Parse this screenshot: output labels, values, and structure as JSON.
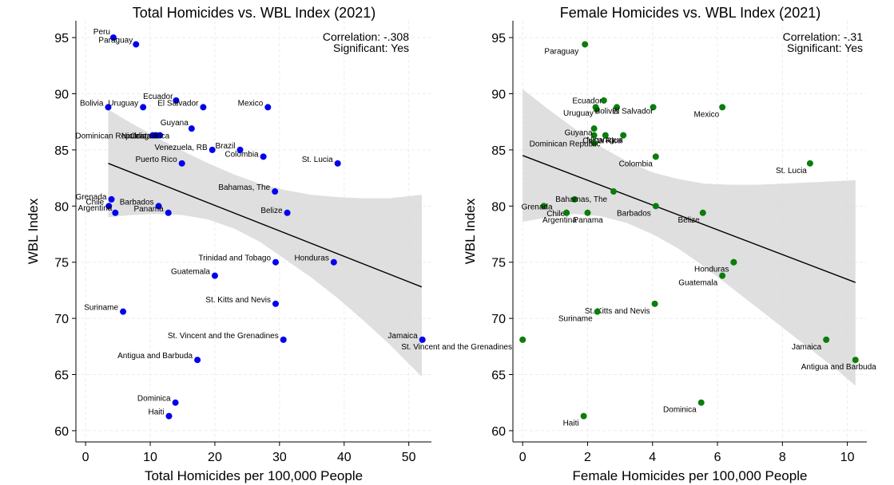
{
  "chart_data": [
    {
      "type": "scatter",
      "title": "Total Homicides vs. WBL Index (2021)",
      "xlabel": "Total Homicides per 100,000 People",
      "ylabel": "WBL Index",
      "xlim": [
        -1.5,
        53.5
      ],
      "ylim": [
        59,
        96.5
      ],
      "xticks": [
        0,
        10,
        20,
        30,
        40,
        50
      ],
      "yticks": [
        60,
        65,
        70,
        75,
        80,
        85,
        90,
        95
      ],
      "point_color": "#0000ee",
      "stats": {
        "correlation": "Correlation: -.308",
        "significant": "Significant: Yes"
      },
      "fit_line": {
        "x": [
          3.5,
          52
        ],
        "y": [
          83.8,
          72.8
        ]
      },
      "ci_band": {
        "x": [
          3.5,
          7,
          11,
          15,
          19,
          23,
          27,
          31,
          35,
          39,
          43,
          47,
          52
        ],
        "upper": [
          88.6,
          87.4,
          86.1,
          84.9,
          83.8,
          82.8,
          82.0,
          81.4,
          81.0,
          80.8,
          80.7,
          80.7,
          81.0
        ],
        "lower": [
          79.0,
          79.2,
          79.3,
          79.2,
          78.8,
          78.0,
          76.8,
          75.2,
          73.6,
          71.8,
          69.8,
          67.7,
          64.8
        ]
      },
      "points": [
        {
          "label": "Peru",
          "x": 4.3,
          "y": 95.0
        },
        {
          "label": "Paraguay",
          "x": 7.8,
          "y": 94.4
        },
        {
          "label": "Ecuador",
          "x": 14.0,
          "y": 89.4
        },
        {
          "label": "Bolivia",
          "x": 3.5,
          "y": 88.8
        },
        {
          "label": "Uruguay",
          "x": 8.9,
          "y": 88.8
        },
        {
          "label": "El Salvador",
          "x": 18.2,
          "y": 88.8
        },
        {
          "label": "Mexico",
          "x": 28.2,
          "y": 88.8
        },
        {
          "label": "Guyana",
          "x": 16.4,
          "y": 86.9
        },
        {
          "label": "Dominican Republic",
          "x": 10.4,
          "y": 86.3
        },
        {
          "label": "Nicaragua",
          "x": 10.9,
          "y": 86.3
        },
        {
          "label": "Costa Rica",
          "x": 11.5,
          "y": 86.3
        },
        {
          "label": "Venezuela, RB",
          "x": 19.6,
          "y": 85.0
        },
        {
          "label": "Brazil",
          "x": 23.9,
          "y": 85.0
        },
        {
          "label": "Colombia",
          "x": 27.5,
          "y": 84.4
        },
        {
          "label": "Puerto Rico",
          "x": 14.9,
          "y": 83.8
        },
        {
          "label": "St. Lucia",
          "x": 39.0,
          "y": 83.8
        },
        {
          "label": "Bahamas, The",
          "x": 29.3,
          "y": 81.3
        },
        {
          "label": "Grenada",
          "x": 4.0,
          "y": 80.6
        },
        {
          "label": "Chile",
          "x": 3.6,
          "y": 80.0
        },
        {
          "label": "Barbados",
          "x": 11.3,
          "y": 80.0
        },
        {
          "label": "Argentina",
          "x": 4.6,
          "y": 79.4
        },
        {
          "label": "Panama",
          "x": 12.8,
          "y": 79.4
        },
        {
          "label": "Belize",
          "x": 31.2,
          "y": 79.4
        },
        {
          "label": "Trinidad and Tobago",
          "x": 29.4,
          "y": 75.0
        },
        {
          "label": "Honduras",
          "x": 38.4,
          "y": 75.0
        },
        {
          "label": "Guatemala",
          "x": 20.0,
          "y": 73.8
        },
        {
          "label": "St. Kitts and Nevis",
          "x": 29.4,
          "y": 71.3
        },
        {
          "label": "Suriname",
          "x": 5.8,
          "y": 70.6
        },
        {
          "label": "St. Vincent and the Grenadines",
          "x": 30.6,
          "y": 68.1
        },
        {
          "label": "Jamaica",
          "x": 52.1,
          "y": 68.1
        },
        {
          "label": "Antigua and Barbuda",
          "x": 17.3,
          "y": 66.3
        },
        {
          "label": "Dominica",
          "x": 13.9,
          "y": 62.5
        },
        {
          "label": "Haiti",
          "x": 12.9,
          "y": 61.3
        }
      ]
    },
    {
      "type": "scatter",
      "title": "Female Homicides vs. WBL Index (2021)",
      "xlabel": "Female Homicides per 100,000 People",
      "ylabel": "WBL Index",
      "xlim": [
        -0.3,
        10.6
      ],
      "ylim": [
        59,
        96.5
      ],
      "xticks": [
        0,
        2,
        4,
        6,
        8,
        10
      ],
      "yticks": [
        60,
        65,
        70,
        75,
        80,
        85,
        90,
        95
      ],
      "point_color": "#0a7d0a",
      "stats": {
        "correlation": "Correlation: -.31",
        "significant": "Significant: Yes"
      },
      "fit_line": {
        "x": [
          0,
          10.25
        ],
        "y": [
          84.5,
          73.2
        ]
      },
      "ci_band": {
        "x": [
          0,
          0.8,
          1.6,
          2.4,
          3.2,
          4.0,
          4.8,
          5.6,
          6.4,
          7.2,
          8.0,
          8.8,
          9.6,
          10.25
        ],
        "upper": [
          90.4,
          88.6,
          86.9,
          85.3,
          84.0,
          83.0,
          82.4,
          82.0,
          81.9,
          81.9,
          82.0,
          82.1,
          82.2,
          82.3
        ],
        "lower": [
          78.6,
          79.0,
          79.3,
          79.1,
          78.5,
          77.5,
          76.2,
          74.6,
          72.8,
          71.0,
          69.2,
          67.4,
          65.6,
          64.0
        ]
      },
      "points": [
        {
          "label": "Paraguay",
          "x": 1.92,
          "y": 94.4
        },
        {
          "label": "Ecuador",
          "x": 2.25,
          "y": 88.8
        },
        {
          "label": "",
          "x": 2.5,
          "y": 89.4
        },
        {
          "label": "Uruguay",
          "x": 2.28,
          "y": 88.6
        },
        {
          "label": "Bolivia",
          "x": 2.9,
          "y": 88.8
        },
        {
          "label": "El Salvador",
          "x": 4.02,
          "y": 88.8
        },
        {
          "label": "Mexico",
          "x": 6.15,
          "y": 88.8
        },
        {
          "label": "",
          "x": 2.2,
          "y": 86.9
        },
        {
          "label": "Guyana",
          "x": 2.2,
          "y": 86.3
        },
        {
          "label": "Nicaragua",
          "x": 2.55,
          "y": 86.3
        },
        {
          "label": "Costa Rica",
          "x": 3.1,
          "y": 86.3
        },
        {
          "label": "Dominican Republic",
          "x": 2.2,
          "y": 85.6
        },
        {
          "label": "Colombia",
          "x": 4.1,
          "y": 84.4
        },
        {
          "label": "St. Lucia",
          "x": 8.85,
          "y": 83.8
        },
        {
          "label": "",
          "x": 2.8,
          "y": 81.3
        },
        {
          "label": "Bahamas, The",
          "x": 1.6,
          "y": 80.6
        },
        {
          "label": "Grenada",
          "x": 0.65,
          "y": 80.0
        },
        {
          "label": "Barbados",
          "x": 4.1,
          "y": 80.0
        },
        {
          "label": "Chile",
          "x": 1.35,
          "y": 79.4
        },
        {
          "label": "Argentina",
          "x": 1.35,
          "y": 79.4
        },
        {
          "label": "Panama",
          "x": 2.0,
          "y": 79.4
        },
        {
          "label": "Belize",
          "x": 5.55,
          "y": 79.4
        },
        {
          "label": "",
          "x": 6.5,
          "y": 75.0
        },
        {
          "label": "Honduras",
          "x": 6.5,
          "y": 75.0
        },
        {
          "label": "Guatemala",
          "x": 6.15,
          "y": 73.8
        },
        {
          "label": "St. Kitts and Nevis",
          "x": 4.07,
          "y": 71.3
        },
        {
          "label": "Suriname",
          "x": 2.3,
          "y": 70.6
        },
        {
          "label": "St. Vincent and the Grenadines",
          "x": 0.0,
          "y": 68.1
        },
        {
          "label": "Jamaica",
          "x": 9.35,
          "y": 68.1
        },
        {
          "label": "Antigua and Barbuda",
          "x": 10.25,
          "y": 66.3
        },
        {
          "label": "Dominica",
          "x": 5.5,
          "y": 62.5
        },
        {
          "label": "Haiti",
          "x": 1.88,
          "y": 61.3
        }
      ]
    }
  ]
}
